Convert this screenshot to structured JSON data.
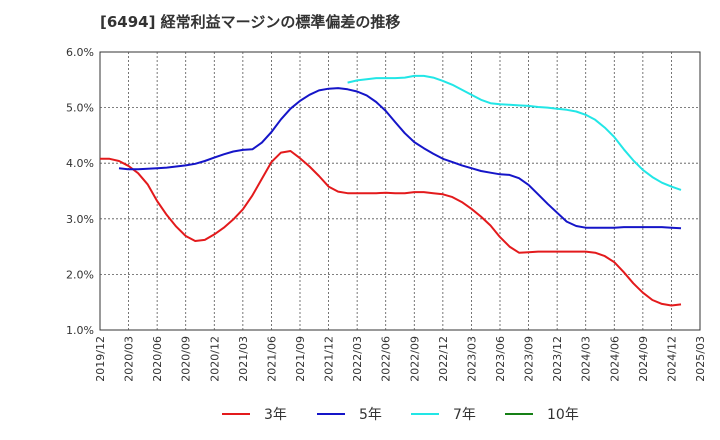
{
  "chart_data": {
    "type": "line",
    "title": "[6494]  経常利益マージンの標準偏差の推移",
    "xlabel": "",
    "ylabel": "",
    "ylim": [
      1.0,
      6.0
    ],
    "y_ticks": [
      "1.0%",
      "2.0%",
      "3.0%",
      "4.0%",
      "5.0%",
      "6.0%"
    ],
    "x_tick_labels": [
      "2019/12",
      "2020/03",
      "2020/06",
      "2020/09",
      "2020/12",
      "2021/03",
      "2021/06",
      "2021/09",
      "2021/12",
      "2022/03",
      "2022/06",
      "2022/09",
      "2022/12",
      "2023/03",
      "2023/06",
      "2023/09",
      "2023/12",
      "2024/03",
      "2024/06",
      "2024/09",
      "2024/12",
      "2025/03"
    ],
    "grid": true,
    "legend_position": "bottom",
    "series": [
      {
        "name": "3年",
        "color": "#e31a1c",
        "points": [
          [
            "2019/12",
            4.08
          ],
          [
            "2020/01",
            4.08
          ],
          [
            "2020/02",
            4.04
          ],
          [
            "2020/03",
            3.95
          ],
          [
            "2020/04",
            3.82
          ],
          [
            "2020/05",
            3.62
          ],
          [
            "2020/06",
            3.32
          ],
          [
            "2020/07",
            3.07
          ],
          [
            "2020/08",
            2.86
          ],
          [
            "2020/09",
            2.69
          ],
          [
            "2020/10",
            2.6
          ],
          [
            "2020/11",
            2.62
          ],
          [
            "2020/12",
            2.72
          ],
          [
            "2021/01",
            2.84
          ],
          [
            "2021/02",
            2.99
          ],
          [
            "2021/03",
            3.17
          ],
          [
            "2021/04",
            3.42
          ],
          [
            "2021/05",
            3.72
          ],
          [
            "2021/06",
            4.02
          ],
          [
            "2021/07",
            4.19
          ],
          [
            "2021/08",
            4.22
          ],
          [
            "2021/09",
            4.09
          ],
          [
            "2021/10",
            3.94
          ],
          [
            "2021/11",
            3.77
          ],
          [
            "2021/12",
            3.58
          ],
          [
            "2022/01",
            3.49
          ],
          [
            "2022/02",
            3.46
          ],
          [
            "2022/03",
            3.46
          ],
          [
            "2022/04",
            3.46
          ],
          [
            "2022/05",
            3.46
          ],
          [
            "2022/06",
            3.47
          ],
          [
            "2022/07",
            3.46
          ],
          [
            "2022/08",
            3.46
          ],
          [
            "2022/09",
            3.48
          ],
          [
            "2022/10",
            3.48
          ],
          [
            "2022/11",
            3.46
          ],
          [
            "2022/12",
            3.44
          ],
          [
            "2023/01",
            3.39
          ],
          [
            "2023/02",
            3.3
          ],
          [
            "2023/03",
            3.18
          ],
          [
            "2023/04",
            3.04
          ],
          [
            "2023/05",
            2.88
          ],
          [
            "2023/06",
            2.67
          ],
          [
            "2023/07",
            2.5
          ],
          [
            "2023/08",
            2.39
          ],
          [
            "2023/09",
            2.4
          ],
          [
            "2023/10",
            2.41
          ],
          [
            "2023/11",
            2.41
          ],
          [
            "2023/12",
            2.41
          ],
          [
            "2024/01",
            2.41
          ],
          [
            "2024/02",
            2.41
          ],
          [
            "2024/03",
            2.41
          ],
          [
            "2024/04",
            2.39
          ],
          [
            "2024/05",
            2.33
          ],
          [
            "2024/06",
            2.22
          ],
          [
            "2024/07",
            2.04
          ],
          [
            "2024/08",
            1.84
          ],
          [
            "2024/09",
            1.67
          ],
          [
            "2024/10",
            1.54
          ],
          [
            "2024/11",
            1.47
          ],
          [
            "2024/12",
            1.44
          ],
          [
            "2025/01",
            1.46
          ]
        ]
      },
      {
        "name": "5年",
        "color": "#1515c8",
        "points": [
          [
            "2020/02",
            3.91
          ],
          [
            "2020/03",
            3.89
          ],
          [
            "2020/04",
            3.89
          ],
          [
            "2020/05",
            3.9
          ],
          [
            "2020/06",
            3.91
          ],
          [
            "2020/07",
            3.92
          ],
          [
            "2020/08",
            3.94
          ],
          [
            "2020/09",
            3.96
          ],
          [
            "2020/10",
            3.99
          ],
          [
            "2020/11",
            4.04
          ],
          [
            "2020/12",
            4.1
          ],
          [
            "2021/01",
            4.16
          ],
          [
            "2021/02",
            4.21
          ],
          [
            "2021/03",
            4.24
          ],
          [
            "2021/04",
            4.25
          ],
          [
            "2021/05",
            4.37
          ],
          [
            "2021/06",
            4.56
          ],
          [
            "2021/07",
            4.79
          ],
          [
            "2021/08",
            4.98
          ],
          [
            "2021/09",
            5.12
          ],
          [
            "2021/10",
            5.23
          ],
          [
            "2021/11",
            5.31
          ],
          [
            "2021/12",
            5.34
          ],
          [
            "2022/01",
            5.35
          ],
          [
            "2022/02",
            5.33
          ],
          [
            "2022/03",
            5.29
          ],
          [
            "2022/04",
            5.22
          ],
          [
            "2022/05",
            5.1
          ],
          [
            "2022/06",
            4.94
          ],
          [
            "2022/07",
            4.74
          ],
          [
            "2022/08",
            4.54
          ],
          [
            "2022/09",
            4.38
          ],
          [
            "2022/10",
            4.27
          ],
          [
            "2022/11",
            4.17
          ],
          [
            "2022/12",
            4.08
          ],
          [
            "2023/01",
            4.02
          ],
          [
            "2023/02",
            3.96
          ],
          [
            "2023/03",
            3.91
          ],
          [
            "2023/04",
            3.86
          ],
          [
            "2023/05",
            3.83
          ],
          [
            "2023/06",
            3.8
          ],
          [
            "2023/07",
            3.79
          ],
          [
            "2023/08",
            3.73
          ],
          [
            "2023/09",
            3.61
          ],
          [
            "2023/10",
            3.44
          ],
          [
            "2023/11",
            3.27
          ],
          [
            "2023/12",
            3.11
          ],
          [
            "2024/01",
            2.95
          ],
          [
            "2024/02",
            2.87
          ],
          [
            "2024/03",
            2.84
          ],
          [
            "2024/04",
            2.84
          ],
          [
            "2024/05",
            2.84
          ],
          [
            "2024/06",
            2.84
          ],
          [
            "2024/07",
            2.85
          ],
          [
            "2024/08",
            2.85
          ],
          [
            "2024/09",
            2.85
          ],
          [
            "2024/10",
            2.85
          ],
          [
            "2024/11",
            2.85
          ],
          [
            "2024/12",
            2.84
          ],
          [
            "2025/01",
            2.83
          ]
        ]
      },
      {
        "name": "7年",
        "color": "#22e6e6",
        "points": [
          [
            "2022/02",
            5.45
          ],
          [
            "2022/03",
            5.49
          ],
          [
            "2022/04",
            5.51
          ],
          [
            "2022/05",
            5.53
          ],
          [
            "2022/06",
            5.53
          ],
          [
            "2022/07",
            5.53
          ],
          [
            "2022/08",
            5.54
          ],
          [
            "2022/09",
            5.57
          ],
          [
            "2022/10",
            5.57
          ],
          [
            "2022/11",
            5.54
          ],
          [
            "2022/12",
            5.48
          ],
          [
            "2023/01",
            5.41
          ],
          [
            "2023/02",
            5.32
          ],
          [
            "2023/03",
            5.23
          ],
          [
            "2023/04",
            5.14
          ],
          [
            "2023/05",
            5.08
          ],
          [
            "2023/06",
            5.06
          ],
          [
            "2023/07",
            5.05
          ],
          [
            "2023/08",
            5.04
          ],
          [
            "2023/09",
            5.03
          ],
          [
            "2023/10",
            5.01
          ],
          [
            "2023/11",
            5.0
          ],
          [
            "2023/12",
            4.98
          ],
          [
            "2024/01",
            4.96
          ],
          [
            "2024/02",
            4.93
          ],
          [
            "2024/03",
            4.87
          ],
          [
            "2024/04",
            4.78
          ],
          [
            "2024/05",
            4.64
          ],
          [
            "2024/06",
            4.47
          ],
          [
            "2024/07",
            4.25
          ],
          [
            "2024/08",
            4.05
          ],
          [
            "2024/09",
            3.88
          ],
          [
            "2024/10",
            3.75
          ],
          [
            "2024/11",
            3.65
          ],
          [
            "2024/12",
            3.58
          ],
          [
            "2025/01",
            3.52
          ]
        ]
      },
      {
        "name": "10年",
        "color": "#168016",
        "points": []
      }
    ]
  }
}
